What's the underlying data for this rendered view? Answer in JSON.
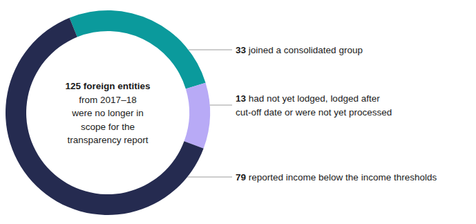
{
  "chart_data": {
    "type": "donut",
    "title": "125 foreign entities\nfrom 2017–18\nwere no longer in\nscope for the\ntransparency report",
    "categories": [
      "joined a consolidated group",
      "had not yet lodged, lodged after\ncut-off date or were not yet processed",
      "reported income below the income thresholds"
    ],
    "values": [
      33,
      13,
      79
    ],
    "colors": [
      "#0b9a9c",
      "#b8aaf6",
      "#252b50"
    ],
    "data_labels": true
  }
}
